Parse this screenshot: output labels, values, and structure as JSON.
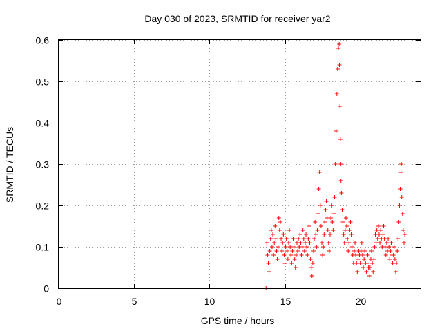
{
  "chart_data": {
    "type": "scatter",
    "title": "Day 030 of 2023, SRMTID for receiver yar2",
    "xlabel": "GPS time / hours",
    "ylabel": "SRMTID / TECUs",
    "xlim": [
      0,
      24
    ],
    "ylim": [
      0,
      0.6
    ],
    "xticks": [
      0,
      5,
      10,
      15,
      20
    ],
    "xtick_labels": [
      "0",
      "5",
      "10",
      "15",
      "20"
    ],
    "yticks": [
      0,
      0.1,
      0.2,
      0.3,
      0.4,
      0.5,
      0.6
    ],
    "ytick_labels": [
      "0",
      "0.1",
      "0.2",
      "0.3",
      "0.4",
      "0.5",
      "0.6"
    ],
    "grid": true,
    "marker": "+",
    "color": "#ff0000",
    "series": [
      {
        "name": "SRMTID",
        "points": [
          [
            13.75,
            0.0
          ],
          [
            13.8,
            0.11
          ],
          [
            13.85,
            0.08
          ],
          [
            13.9,
            0.06
          ],
          [
            13.95,
            0.04
          ],
          [
            14.0,
            0.09
          ],
          [
            14.05,
            0.12
          ],
          [
            14.1,
            0.14
          ],
          [
            14.15,
            0.1
          ],
          [
            14.2,
            0.13
          ],
          [
            14.25,
            0.08
          ],
          [
            14.3,
            0.11
          ],
          [
            14.35,
            0.15
          ],
          [
            14.4,
            0.12
          ],
          [
            14.45,
            0.09
          ],
          [
            14.5,
            0.07
          ],
          [
            14.55,
            0.1
          ],
          [
            14.6,
            0.17
          ],
          [
            14.65,
            0.14
          ],
          [
            14.7,
            0.16
          ],
          [
            14.75,
            0.12
          ],
          [
            14.8,
            0.09
          ],
          [
            14.85,
            0.11
          ],
          [
            14.9,
            0.13
          ],
          [
            14.95,
            0.08
          ],
          [
            15.0,
            0.06
          ],
          [
            15.05,
            0.1
          ],
          [
            15.1,
            0.12
          ],
          [
            15.15,
            0.09
          ],
          [
            15.2,
            0.07
          ],
          [
            15.25,
            0.11
          ],
          [
            15.3,
            0.14
          ],
          [
            15.35,
            0.1
          ],
          [
            15.4,
            0.08
          ],
          [
            15.45,
            0.06
          ],
          [
            15.5,
            0.09
          ],
          [
            15.55,
            0.12
          ],
          [
            15.6,
            0.1
          ],
          [
            15.65,
            0.07
          ],
          [
            15.7,
            0.05
          ],
          [
            15.75,
            0.08
          ],
          [
            15.8,
            0.11
          ],
          [
            15.85,
            0.09
          ],
          [
            15.9,
            0.12
          ],
          [
            15.95,
            0.1
          ],
          [
            16.0,
            0.13
          ],
          [
            16.05,
            0.11
          ],
          [
            16.1,
            0.08
          ],
          [
            16.15,
            0.1
          ],
          [
            16.2,
            0.14
          ],
          [
            16.25,
            0.12
          ],
          [
            16.3,
            0.09
          ],
          [
            16.35,
            0.11
          ],
          [
            16.4,
            0.13
          ],
          [
            16.45,
            0.1
          ],
          [
            16.5,
            0.08
          ],
          [
            16.55,
            0.12
          ],
          [
            16.6,
            0.15
          ],
          [
            16.65,
            0.11
          ],
          [
            16.7,
            0.07
          ],
          [
            16.75,
            0.05
          ],
          [
            16.8,
            0.03
          ],
          [
            16.85,
            0.06
          ],
          [
            16.9,
            0.09
          ],
          [
            16.95,
            0.12
          ],
          [
            17.0,
            0.16
          ],
          [
            17.05,
            0.13
          ],
          [
            17.1,
            0.1
          ],
          [
            17.15,
            0.14
          ],
          [
            17.2,
            0.18
          ],
          [
            17.25,
            0.24
          ],
          [
            17.3,
            0.28
          ],
          [
            17.35,
            0.2
          ],
          [
            17.4,
            0.15
          ],
          [
            17.45,
            0.11
          ],
          [
            17.5,
            0.08
          ],
          [
            17.55,
            0.1
          ],
          [
            17.6,
            0.13
          ],
          [
            17.65,
            0.16
          ],
          [
            17.7,
            0.19
          ],
          [
            17.75,
            0.21
          ],
          [
            17.8,
            0.17
          ],
          [
            17.85,
            0.14
          ],
          [
            17.9,
            0.11
          ],
          [
            17.95,
            0.09
          ],
          [
            18.0,
            0.13
          ],
          [
            18.05,
            0.17
          ],
          [
            18.1,
            0.2
          ],
          [
            18.15,
            0.16
          ],
          [
            18.2,
            0.14
          ],
          [
            18.25,
            0.18
          ],
          [
            18.3,
            0.22
          ],
          [
            18.35,
            0.3
          ],
          [
            18.4,
            0.38
          ],
          [
            18.45,
            0.47
          ],
          [
            18.5,
            0.53
          ],
          [
            18.55,
            0.58
          ],
          [
            18.6,
            0.59
          ],
          [
            18.62,
            0.54
          ],
          [
            18.65,
            0.44
          ],
          [
            18.68,
            0.36
          ],
          [
            18.7,
            0.3
          ],
          [
            18.72,
            0.26
          ],
          [
            18.75,
            0.23
          ],
          [
            18.8,
            0.19
          ],
          [
            18.85,
            0.16
          ],
          [
            18.9,
            0.13
          ],
          [
            18.95,
            0.11
          ],
          [
            19.0,
            0.14
          ],
          [
            19.05,
            0.17
          ],
          [
            19.1,
            0.15
          ],
          [
            19.15,
            0.12
          ],
          [
            19.2,
            0.09
          ],
          [
            19.25,
            0.11
          ],
          [
            19.3,
            0.14
          ],
          [
            19.35,
            0.16
          ],
          [
            19.4,
            0.13
          ],
          [
            19.45,
            0.1
          ],
          [
            19.5,
            0.08
          ],
          [
            19.55,
            0.06
          ],
          [
            19.6,
            0.09
          ],
          [
            19.65,
            0.11
          ],
          [
            19.7,
            0.08
          ],
          [
            19.75,
            0.06
          ],
          [
            19.8,
            0.04
          ],
          [
            19.85,
            0.07
          ],
          [
            19.9,
            0.09
          ],
          [
            19.95,
            0.08
          ],
          [
            20.0,
            0.06
          ],
          [
            20.05,
            0.09
          ],
          [
            20.1,
            0.11
          ],
          [
            20.15,
            0.08
          ],
          [
            20.2,
            0.05
          ],
          [
            20.25,
            0.07
          ],
          [
            20.3,
            0.09
          ],
          [
            20.35,
            0.06
          ],
          [
            20.4,
            0.04
          ],
          [
            20.45,
            0.06
          ],
          [
            20.5,
            0.08
          ],
          [
            20.55,
            0.05
          ],
          [
            20.6,
            0.03
          ],
          [
            20.65,
            0.05
          ],
          [
            20.7,
            0.07
          ],
          [
            20.75,
            0.09
          ],
          [
            20.8,
            0.06
          ],
          [
            20.85,
            0.04
          ],
          [
            20.9,
            0.07
          ],
          [
            20.95,
            0.1
          ],
          [
            21.0,
            0.13
          ],
          [
            21.05,
            0.11
          ],
          [
            21.1,
            0.14
          ],
          [
            21.15,
            0.12
          ],
          [
            21.2,
            0.15
          ],
          [
            21.25,
            0.13
          ],
          [
            21.3,
            0.11
          ],
          [
            21.35,
            0.14
          ],
          [
            21.4,
            0.12
          ],
          [
            21.45,
            0.1
          ],
          [
            21.5,
            0.13
          ],
          [
            21.55,
            0.15
          ],
          [
            21.6,
            0.12
          ],
          [
            21.65,
            0.1
          ],
          [
            21.7,
            0.08
          ],
          [
            21.75,
            0.11
          ],
          [
            21.8,
            0.09
          ],
          [
            21.85,
            0.12
          ],
          [
            21.9,
            0.1
          ],
          [
            21.95,
            0.07
          ],
          [
            22.0,
            0.09
          ],
          [
            22.05,
            0.11
          ],
          [
            22.1,
            0.08
          ],
          [
            22.15,
            0.06
          ],
          [
            22.2,
            0.08
          ],
          [
            22.25,
            0.1
          ],
          [
            22.3,
            0.07
          ],
          [
            22.35,
            0.04
          ],
          [
            22.4,
            0.06
          ],
          [
            22.45,
            0.09
          ],
          [
            22.5,
            0.12
          ],
          [
            22.55,
            0.16
          ],
          [
            22.6,
            0.2
          ],
          [
            22.65,
            0.24
          ],
          [
            22.7,
            0.28
          ],
          [
            22.72,
            0.3
          ],
          [
            22.75,
            0.22
          ],
          [
            22.8,
            0.18
          ],
          [
            22.85,
            0.14
          ],
          [
            22.9,
            0.11
          ],
          [
            22.95,
            0.13
          ]
        ]
      }
    ]
  }
}
